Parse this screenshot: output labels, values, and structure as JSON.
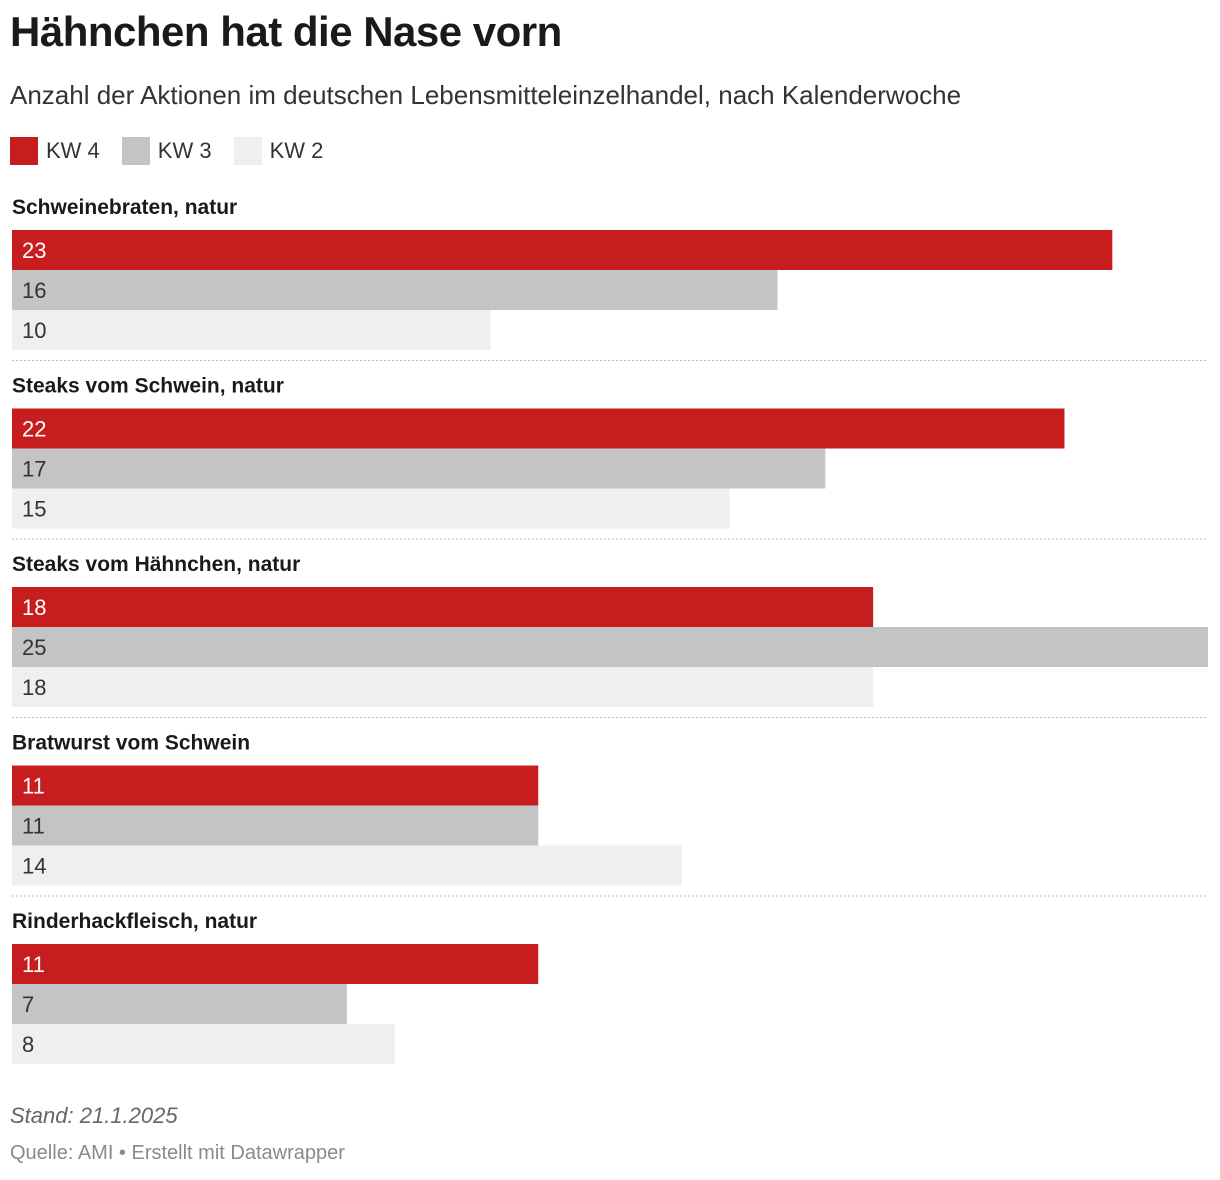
{
  "title": "Hähnchen hat die Nase vorn",
  "subtitle": "Anzahl der Aktionen im deutschen Lebensmitteleinzelhandel, nach Kalenderwoche",
  "legend": [
    {
      "label": "KW 4",
      "color": "#c81d1f"
    },
    {
      "label": "KW 3",
      "color": "#c4c4c4"
    },
    {
      "label": "KW 2",
      "color": "#efefef"
    }
  ],
  "chart_data": {
    "type": "bar",
    "orientation": "horizontal",
    "categories": [
      "Schweinebraten, natur",
      "Steaks vom Schwein, natur",
      "Steaks vom Hähnchen, natur",
      "Bratwurst vom Schwein",
      "Rinderhackfleisch, natur"
    ],
    "series": [
      {
        "name": "KW 4",
        "color": "#c81d1f",
        "label_color": "#ffffff",
        "values": [
          23,
          22,
          18,
          11,
          11
        ]
      },
      {
        "name": "KW 3",
        "color": "#c4c4c4",
        "label_color": "#333333",
        "values": [
          16,
          17,
          25,
          11,
          7
        ]
      },
      {
        "name": "KW 2",
        "color": "#efefef",
        "label_color": "#333333",
        "values": [
          10,
          15,
          18,
          14,
          8
        ]
      }
    ],
    "xlim": [
      0,
      25
    ],
    "grid": false,
    "legend_position": "top-left"
  },
  "footer": {
    "stand": "Stand: 21.1.2025",
    "source": "Quelle: AMI • Erstellt mit Datawrapper"
  }
}
